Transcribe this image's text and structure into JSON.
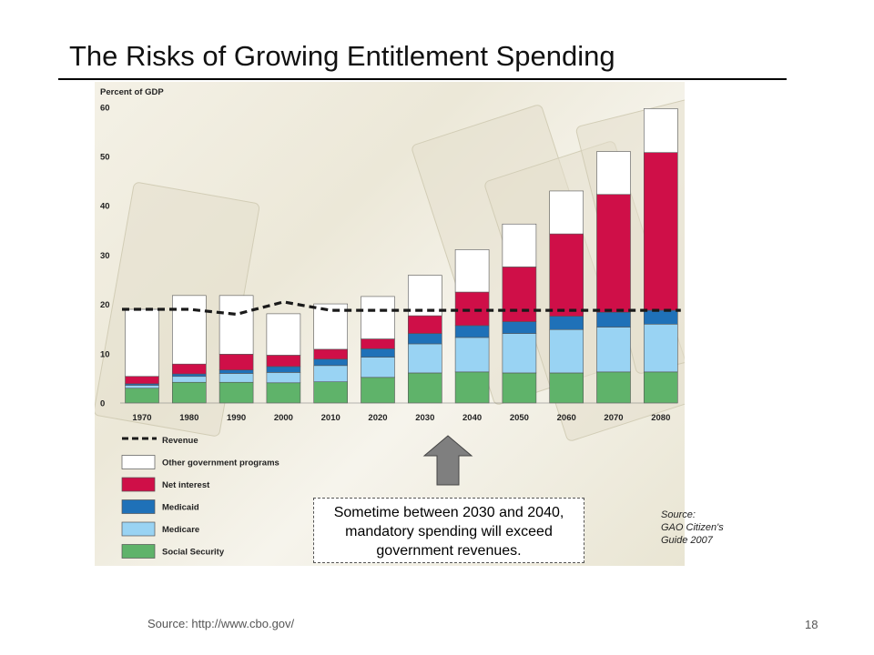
{
  "slide": {
    "title": "The Risks of Growing Entitlement Spending",
    "callout_lines": [
      "Sometime between 2030 and 2040,",
      "mandatory spending will exceed",
      "government revenues."
    ],
    "chart_source_lines": [
      "Source:",
      "GAO Citizen's",
      "Guide 2007"
    ],
    "footer_source": "Source: http://www.cbo.gov/",
    "page_number": "18"
  },
  "chart_data": {
    "type": "bar",
    "stacked": true,
    "ylabel": "Percent of GDP",
    "ylim": [
      0,
      60
    ],
    "yticks": [
      0,
      10,
      20,
      30,
      40,
      50,
      60
    ],
    "grid": false,
    "legend_position": "bottom-left",
    "categories": [
      "1970",
      "1980",
      "1990",
      "2000",
      "2010",
      "2020",
      "2030",
      "2040",
      "2050",
      "2060",
      "2070",
      "2080"
    ],
    "series": [
      {
        "name": "Social Security",
        "color": "#5fb36a",
        "values": [
          3,
          4.2,
          4.2,
          4.1,
          4.3,
          5.2,
          6.1,
          6.3,
          6.1,
          6.1,
          6.3,
          6.3
        ]
      },
      {
        "name": "Medicare",
        "color": "#99d3f3",
        "values": [
          0.6,
          1.2,
          1.8,
          2.1,
          3.3,
          4.1,
          5.9,
          7.0,
          8.0,
          8.8,
          9.1,
          9.7
        ]
      },
      {
        "name": "Medicaid",
        "color": "#1f71b8",
        "values": [
          0.3,
          0.5,
          0.7,
          1.2,
          1.3,
          1.7,
          2.1,
          2.4,
          2.4,
          2.7,
          3.0,
          2.8
        ]
      },
      {
        "name": "Net interest",
        "color": "#cf0f48",
        "values": [
          1.5,
          2.0,
          3.2,
          2.3,
          2.0,
          2.0,
          3.6,
          6.8,
          11.1,
          16.7,
          23.9,
          32.0
        ]
      },
      {
        "name": "Other government programs",
        "color": "#ffffff",
        "values": [
          13.6,
          13.9,
          11.9,
          8.4,
          9.2,
          8.6,
          8.2,
          8.6,
          8.7,
          8.7,
          8.7,
          8.9
        ]
      }
    ],
    "revenue": {
      "name": "Revenue",
      "style": "dashed",
      "color": "#1a1a1a",
      "values": [
        19,
        19,
        18,
        20.5,
        18.8,
        18.8,
        18.8,
        18.8,
        18.8,
        18.8,
        18.8,
        18.8
      ]
    },
    "legend_order": [
      "Revenue",
      "Other government programs",
      "Net interest",
      "Medicaid",
      "Medicare",
      "Social Security"
    ],
    "annotation_arrow_color": "#7f7f7f"
  }
}
